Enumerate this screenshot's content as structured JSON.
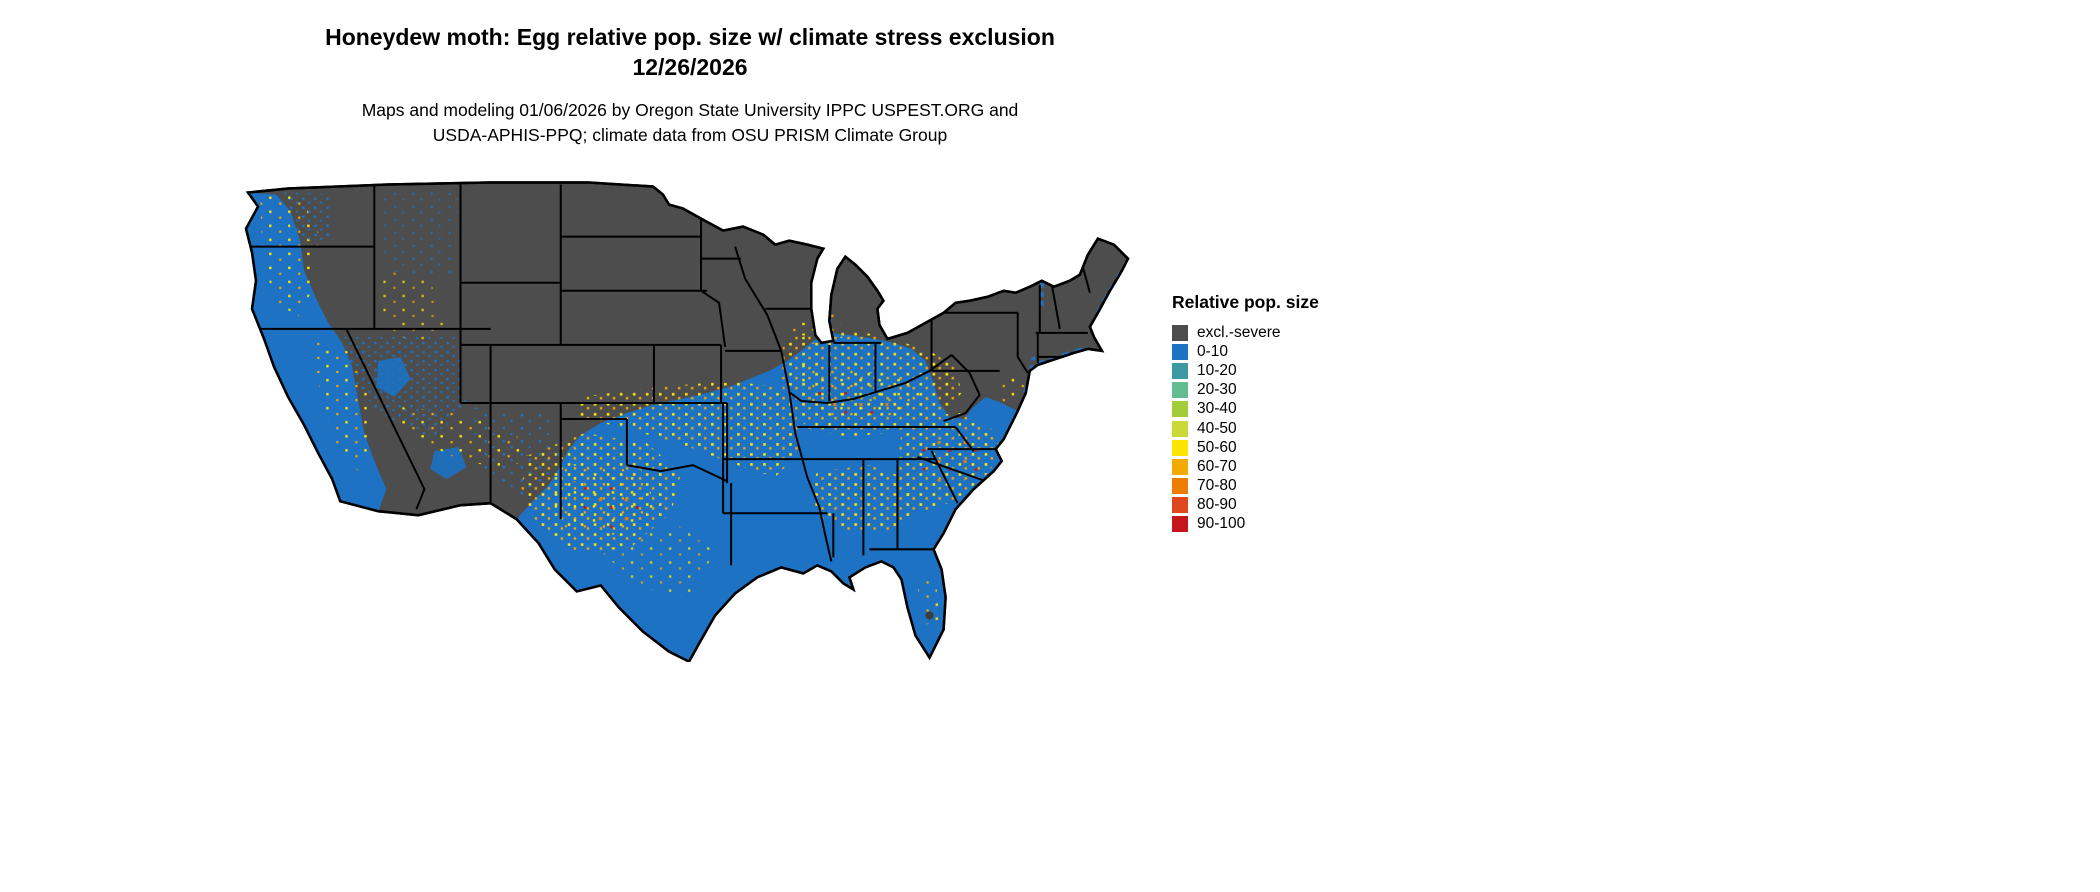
{
  "header": {
    "title_line1": "Honeydew moth: Egg relative pop. size w/ climate stress exclusion",
    "title_line2": "12/26/2026",
    "subtitle_line1": "Maps and modeling 01/06/2026 by Oregon State University IPPC USPEST.ORG and",
    "subtitle_line2": "USDA-APHIS-PPQ; climate data from OSU PRISM Climate Group"
  },
  "legend": {
    "title": "Relative pop. size",
    "entries": [
      {
        "label": "excl.-severe",
        "color": "#4d4d4d"
      },
      {
        "label": "0-10",
        "color": "#1d72c4"
      },
      {
        "label": "10-20",
        "color": "#3d99a1"
      },
      {
        "label": "20-30",
        "color": "#63bd90"
      },
      {
        "label": "30-40",
        "color": "#a2cc3a"
      },
      {
        "label": "40-50",
        "color": "#c9da38"
      },
      {
        "label": "50-60",
        "color": "#ffe300"
      },
      {
        "label": "60-70",
        "color": "#f2a900"
      },
      {
        "label": "70-80",
        "color": "#ed7d00"
      },
      {
        "label": "80-90",
        "color": "#df481f"
      },
      {
        "label": "90-100",
        "color": "#c4161c"
      }
    ]
  },
  "map": {
    "region": "Continental United States",
    "excluded_color": "#4d4d4d",
    "base_low_pop_color": "#1d72c4",
    "speckle_colors": [
      "#ffe300",
      "#f2a900",
      "#ed7d00",
      "#c4161c"
    ],
    "background_color": "#ffffff",
    "border_color": "#000000"
  }
}
